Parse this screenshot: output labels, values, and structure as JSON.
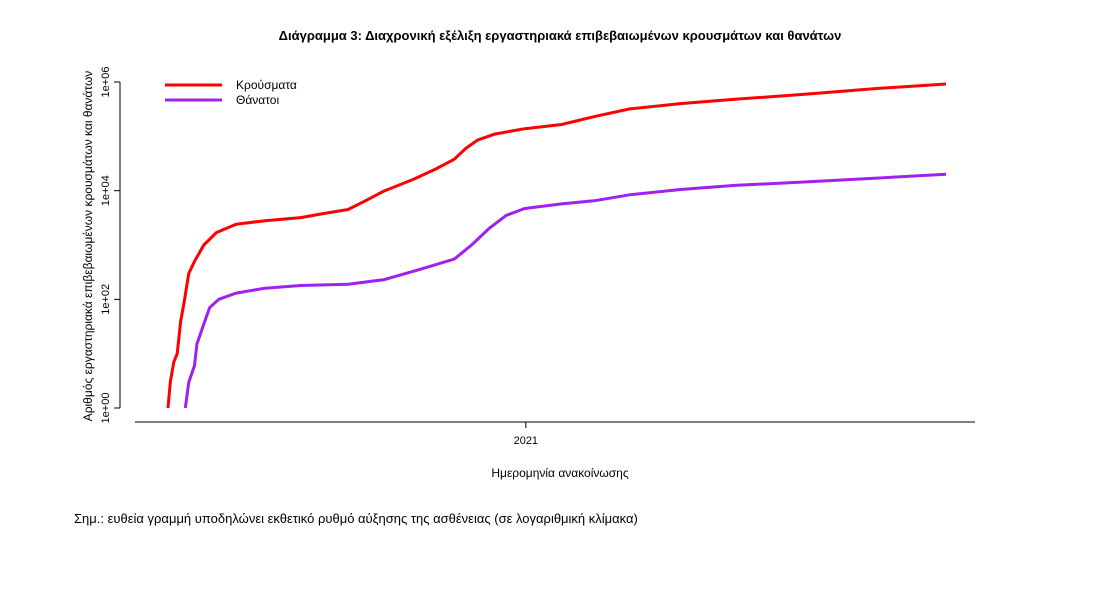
{
  "chart_data": {
    "type": "line",
    "title": "Διάγραμμα 3: Διαχρονική εξέλιξη εργαστηριακά επιβεβαιωμένων κρουσμάτων και θανάτων",
    "xlabel": "Ημερομηνία ανακοίνωσης",
    "ylabel": "Αριθμός εργαστηριακά επιβεβαιωμένων κρουσμάτων και θανάτων",
    "x_ticks": [
      "2021"
    ],
    "x_range": [
      "2020-02-26",
      "2021-12-31"
    ],
    "x_tick_dates": [
      "2021-01-01"
    ],
    "y_scale": "log",
    "y_ticks": [
      "1e+00",
      "1e+02",
      "1e+04",
      "1e+06"
    ],
    "y_tick_values": [
      1,
      100,
      10000,
      1000000
    ],
    "ylim": [
      1,
      1000000
    ],
    "grid": false,
    "legend_position": "top-left",
    "series": [
      {
        "name": "Κρούσματα",
        "color": "#ff0000",
        "points": [
          [
            "2020-02-26",
            1
          ],
          [
            "2020-02-28",
            3
          ],
          [
            "2020-03-02",
            7
          ],
          [
            "2020-03-05",
            10
          ],
          [
            "2020-03-08",
            40
          ],
          [
            "2020-03-11",
            90
          ],
          [
            "2020-03-15",
            300
          ],
          [
            "2020-03-20",
            500
          ],
          [
            "2020-03-28",
            1000
          ],
          [
            "2020-04-08",
            1700
          ],
          [
            "2020-04-25",
            2400
          ],
          [
            "2020-05-20",
            2800
          ],
          [
            "2020-06-20",
            3200
          ],
          [
            "2020-07-10",
            3800
          ],
          [
            "2020-07-31",
            4500
          ],
          [
            "2020-08-15",
            6500
          ],
          [
            "2020-08-31",
            9800
          ],
          [
            "2020-09-25",
            16000
          ],
          [
            "2020-10-15",
            25000
          ],
          [
            "2020-10-31",
            38000
          ],
          [
            "2020-11-10",
            60000
          ],
          [
            "2020-11-20",
            85000
          ],
          [
            "2020-12-05",
            110000
          ],
          [
            "2020-12-31",
            138000
          ],
          [
            "2021-02-01",
            165000
          ],
          [
            "2021-03-01",
            230000
          ],
          [
            "2021-04-01",
            320000
          ],
          [
            "2021-05-15",
            400000
          ],
          [
            "2021-07-01",
            480000
          ],
          [
            "2021-09-01",
            600000
          ],
          [
            "2021-11-01",
            760000
          ],
          [
            "2021-12-31",
            920000
          ]
        ]
      },
      {
        "name": "Θάνατοι",
        "color": "#a020f0",
        "points": [
          [
            "2020-03-12",
            1
          ],
          [
            "2020-03-15",
            3
          ],
          [
            "2020-03-20",
            6
          ],
          [
            "2020-03-22",
            15
          ],
          [
            "2020-03-28",
            35
          ],
          [
            "2020-04-02",
            70
          ],
          [
            "2020-04-10",
            100
          ],
          [
            "2020-04-25",
            130
          ],
          [
            "2020-05-20",
            160
          ],
          [
            "2020-06-20",
            180
          ],
          [
            "2020-07-31",
            190
          ],
          [
            "2020-08-31",
            230
          ],
          [
            "2020-09-30",
            350
          ],
          [
            "2020-10-31",
            550
          ],
          [
            "2020-11-15",
            1000
          ],
          [
            "2020-11-30",
            2000
          ],
          [
            "2020-12-15",
            3500
          ],
          [
            "2020-12-31",
            4700
          ],
          [
            "2021-02-01",
            5700
          ],
          [
            "2021-03-01",
            6500
          ],
          [
            "2021-04-01",
            8400
          ],
          [
            "2021-05-15",
            10500
          ],
          [
            "2021-07-01",
            12500
          ],
          [
            "2021-09-01",
            14500
          ],
          [
            "2021-11-01",
            17000
          ],
          [
            "2021-12-31",
            20000
          ]
        ]
      }
    ]
  },
  "note": "Σημ.: ευθεία γραμμή υποδηλώνει εκθετικό ρυθμό αύξησης της ασθένειας (σε λογαριθμική κλίμακα)"
}
